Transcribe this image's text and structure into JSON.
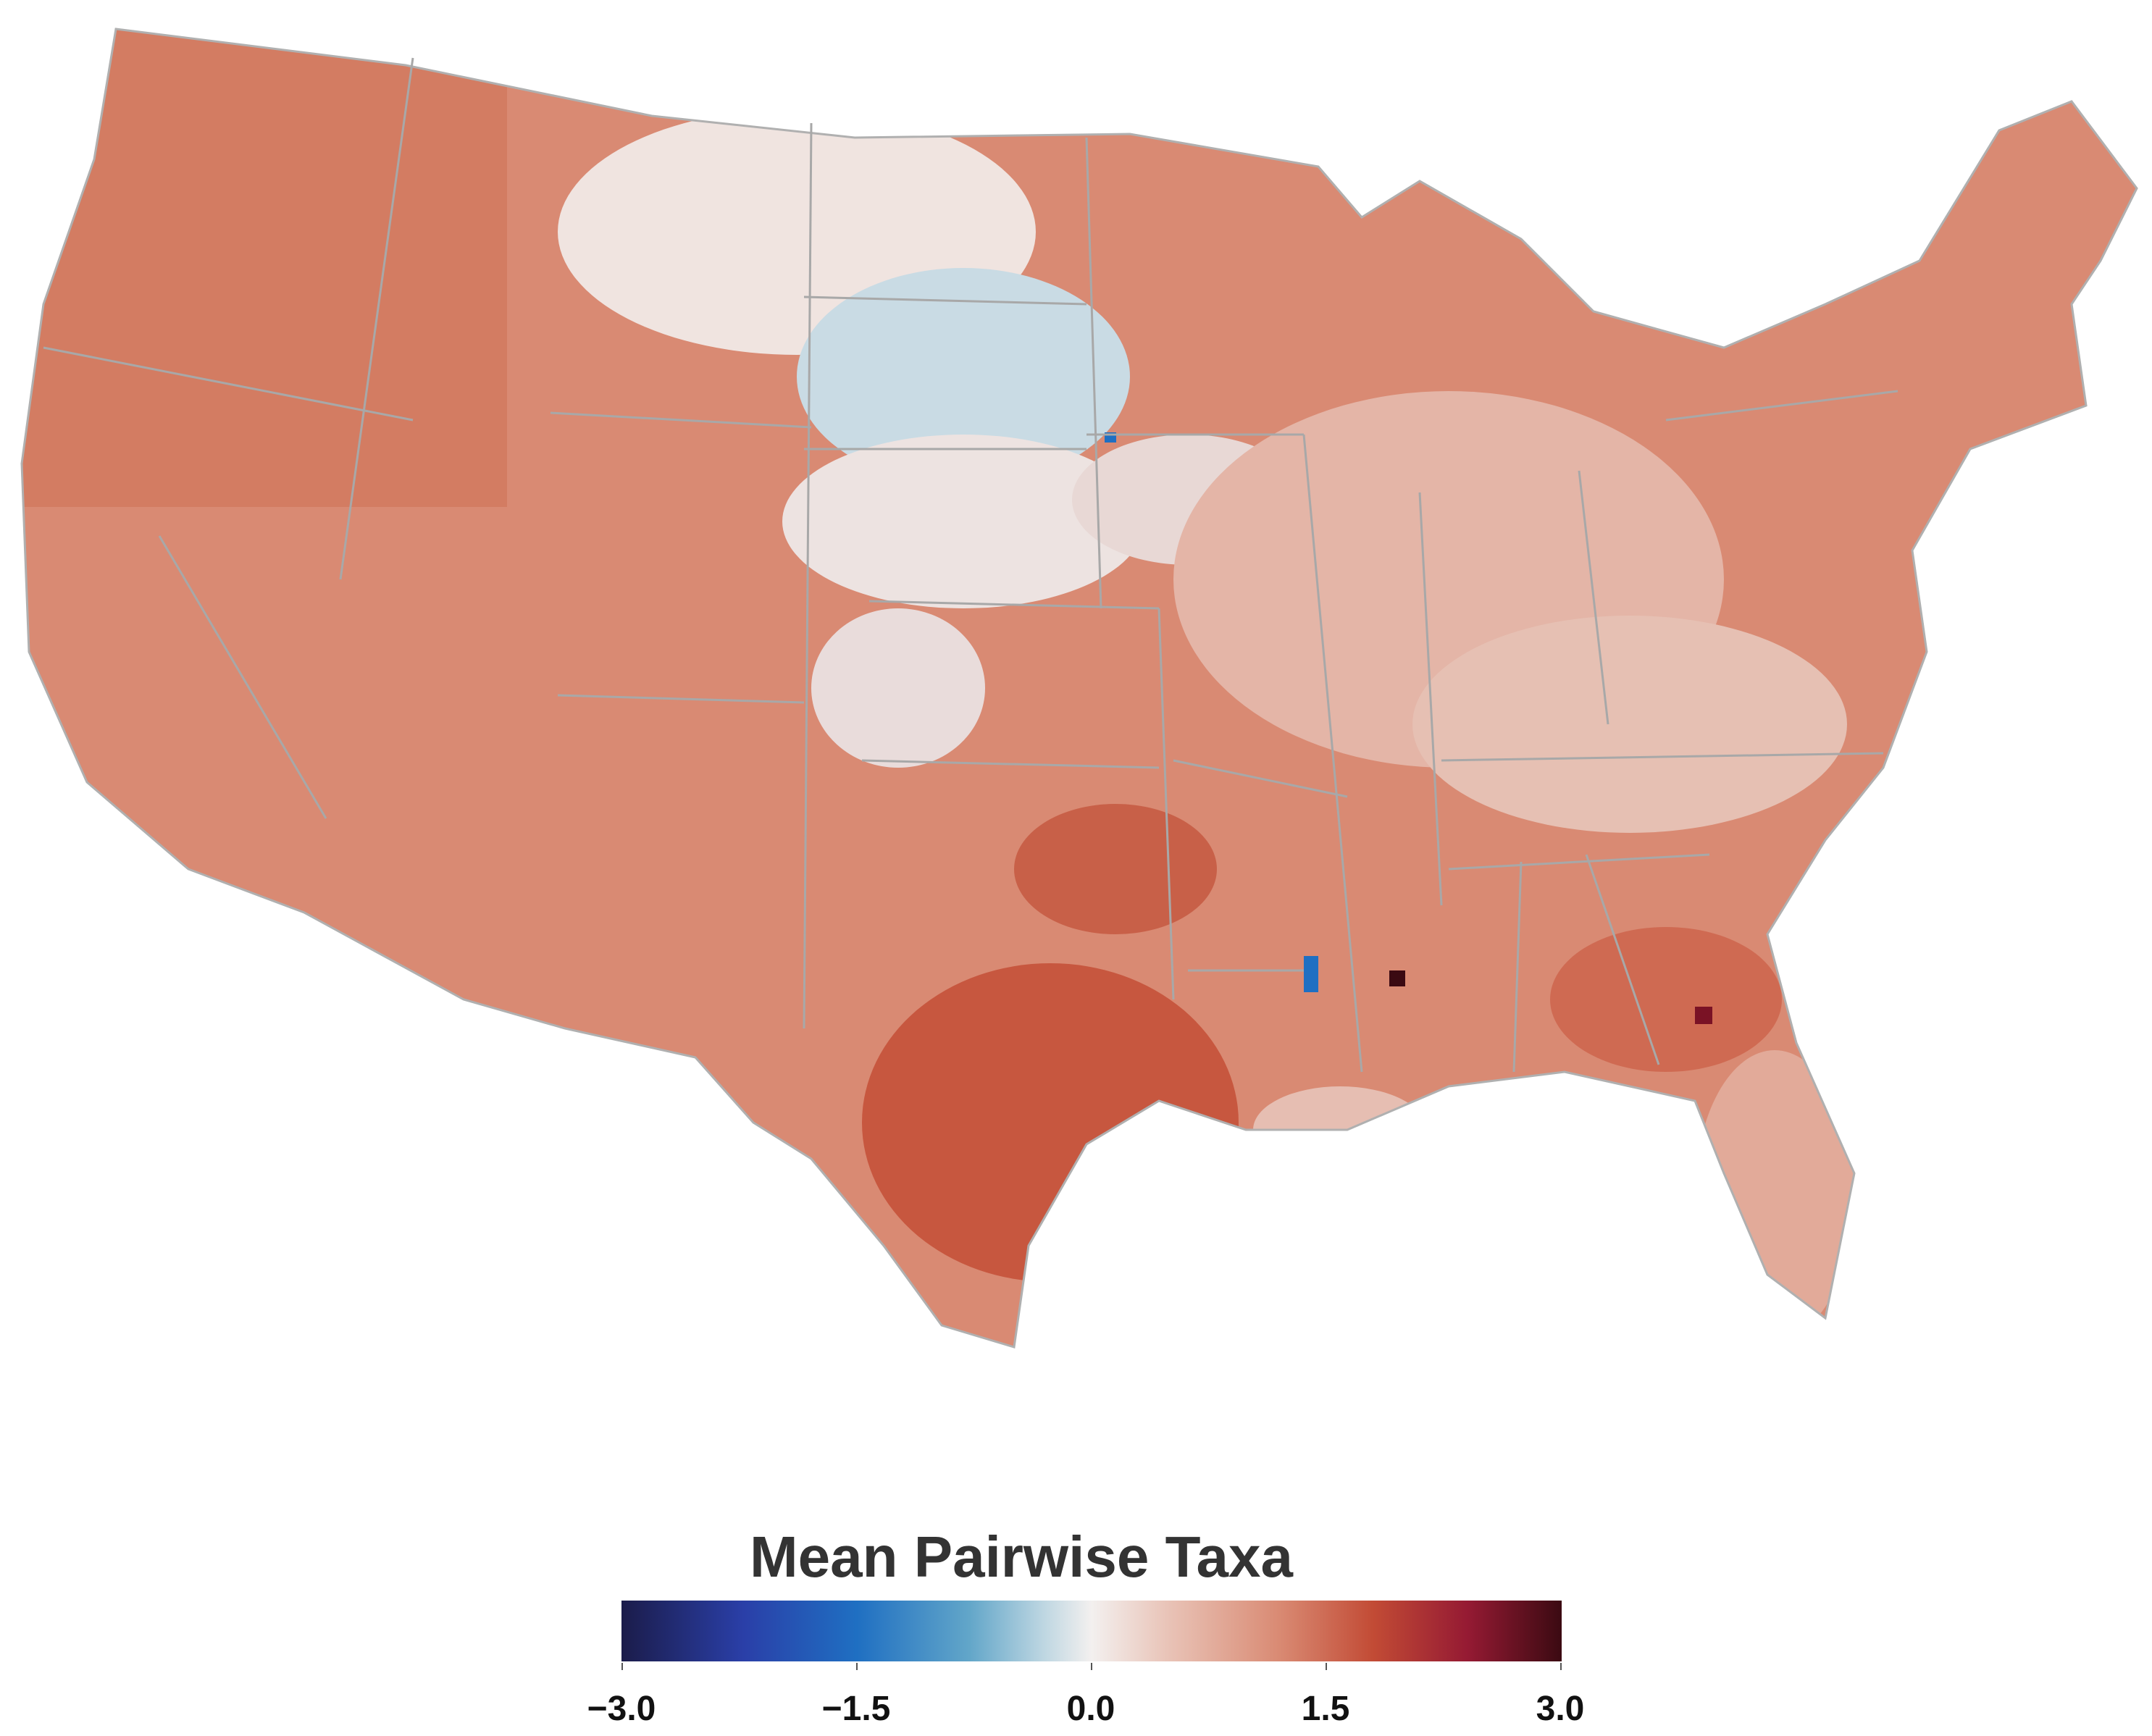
{
  "legend": {
    "title": "Mean Pairwise Taxa",
    "ticks": [
      "−3.0",
      "−1.5",
      "0.0",
      "1.5",
      "3.0"
    ],
    "range": [
      -3.0,
      3.0
    ],
    "colors": {
      "low": "#1b1c4a",
      "mid_low": "#1f6fc2",
      "neutral": "#f3f0ef",
      "mid_high": "#d98a73",
      "high": "#3b0a12"
    }
  },
  "map": {
    "region": "contiguous United States",
    "style": "county choropleth",
    "border_color": "#a8a8a8",
    "dominant_color": "#d98a73",
    "notable_values": {
      "northern_plains": "near 0 / slightly negative",
      "south_texas": "high positive",
      "georgia_alabama_hotspots": "max positive"
    }
  }
}
